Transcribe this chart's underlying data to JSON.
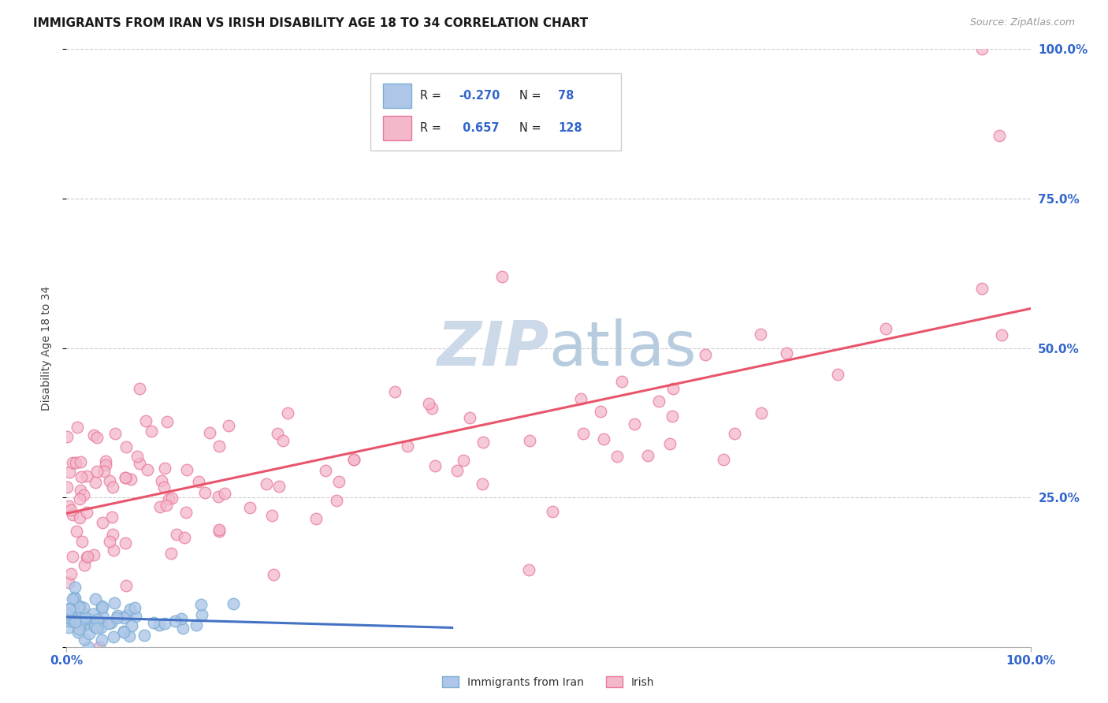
{
  "title": "IMMIGRANTS FROM IRAN VS IRISH DISABILITY AGE 18 TO 34 CORRELATION CHART",
  "source": "Source: ZipAtlas.com",
  "ylabel": "Disability Age 18 to 34",
  "series_iran": {
    "color_face": "#aec6e8",
    "color_edge": "#7bafd4",
    "R": -0.27,
    "N": 78,
    "trend_color": "#4472c4"
  },
  "series_irish": {
    "color_face": "#f4b8cb",
    "color_edge": "#e87a99",
    "R": 0.657,
    "N": 128,
    "trend_color": "#e8556a"
  },
  "background_color": "#ffffff",
  "grid_color": "#cccccc",
  "watermark_color": "#ccd9e8",
  "axis_label_color": "#3366cc",
  "iran_seed": 42,
  "irish_seed": 99
}
